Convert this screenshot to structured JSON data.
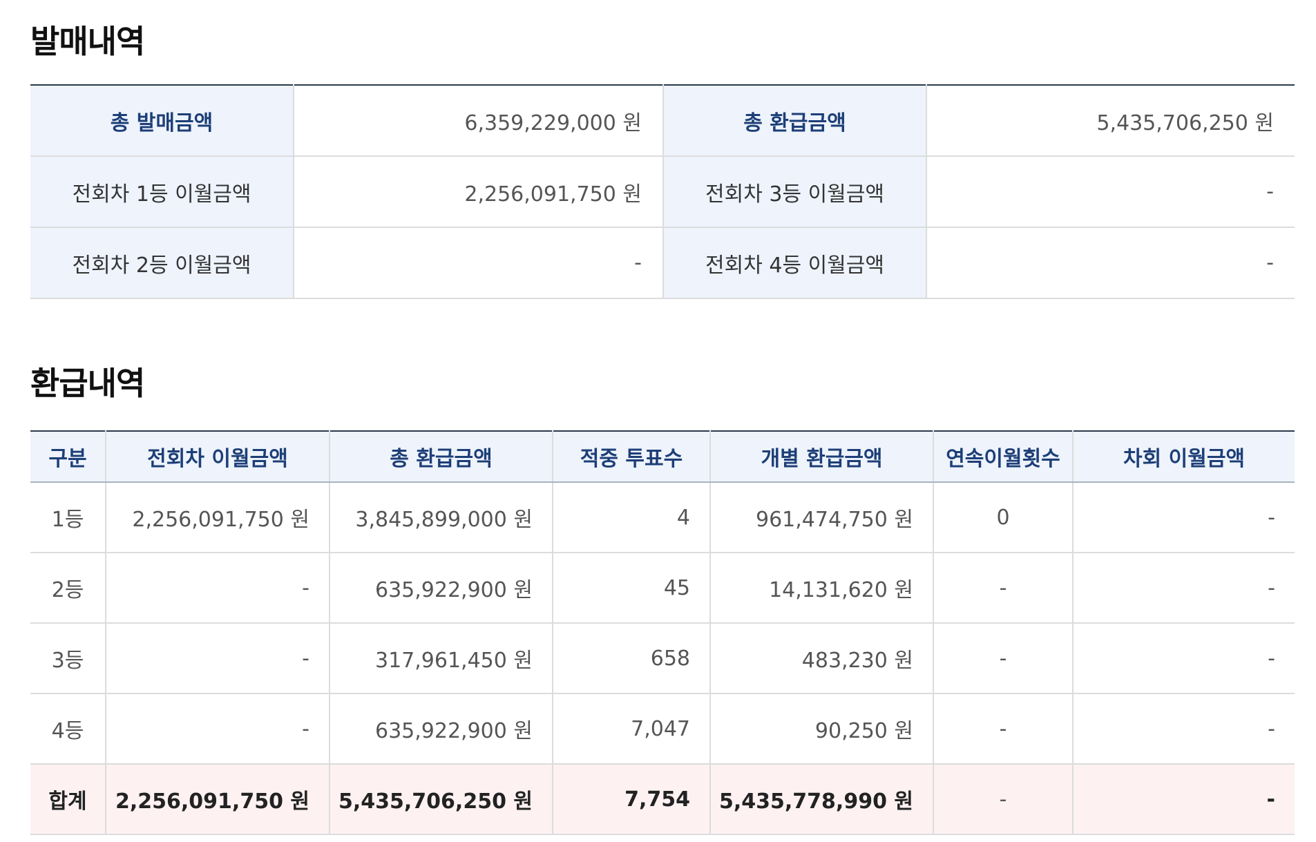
{
  "sales_section": {
    "title": "발매내역",
    "rows": [
      [
        {
          "label": "총 발매금액",
          "value": "6,359,229,000 원",
          "strong": true
        },
        {
          "label": "총 환급금액",
          "value": "5,435,706,250 원",
          "strong": true
        }
      ],
      [
        {
          "label": "전회차 1등 이월금액",
          "value": "2,256,091,750 원"
        },
        {
          "label": "전회차 3등 이월금액",
          "value": "-"
        }
      ],
      [
        {
          "label": "전회차 2등 이월금액",
          "value": "-"
        },
        {
          "label": "전회차 4등 이월금액",
          "value": "-"
        }
      ]
    ]
  },
  "refund_section": {
    "title": "환급내역",
    "headers": [
      "구분",
      "전회차 이월금액",
      "총 환급금액",
      "적중 투표수",
      "개별 환급금액",
      "연속이월횟수",
      "차회 이월금액"
    ],
    "rows": [
      [
        "1등",
        "2,256,091,750 원",
        "3,845,899,000 원",
        "4",
        "961,474,750 원",
        "0",
        "-"
      ],
      [
        "2등",
        "-",
        "635,922,900 원",
        "45",
        "14,131,620 원",
        "-",
        "-"
      ],
      [
        "3등",
        "-",
        "317,961,450 원",
        "658",
        "483,230 원",
        "-",
        "-"
      ],
      [
        "4등",
        "-",
        "635,922,900 원",
        "7,047",
        "90,250 원",
        "-",
        "-"
      ]
    ],
    "total": [
      "합계",
      "2,256,091,750 원",
      "5,435,706,250 원",
      "7,754",
      "5,435,778,990 원",
      "-",
      "-"
    ]
  }
}
